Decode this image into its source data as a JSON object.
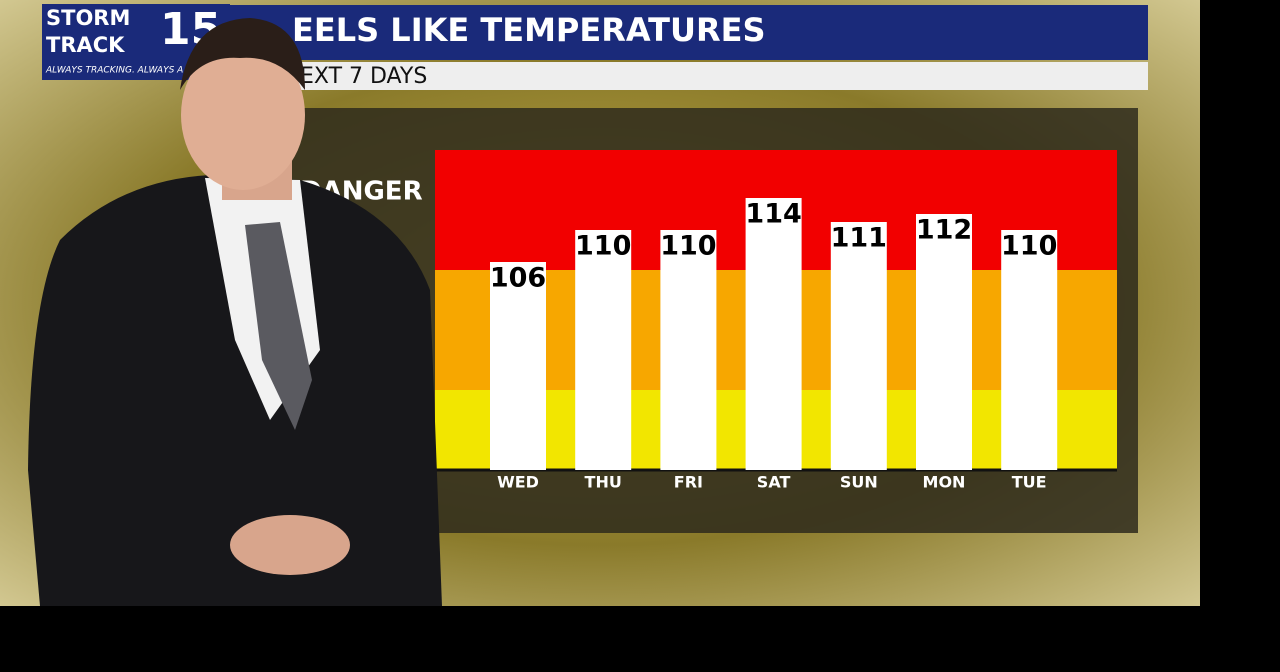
{
  "logo": {
    "line1": "STORM",
    "line2": "TRACK",
    "number": "15",
    "tagline": "ALWAYS TRACKING. ALWAYS A"
  },
  "chart_data": {
    "type": "bar",
    "title": "EELS LIKE TEMPERATURES",
    "subtitle": "EXT 7 DAYS",
    "band_label": "DANGER",
    "categories": [
      "WED",
      "THU",
      "FRI",
      "SAT",
      "SUN",
      "MON",
      "TUE"
    ],
    "values": [
      106,
      110,
      110,
      114,
      111,
      112,
      110
    ],
    "color": "#ffffff",
    "ylim": [
      80,
      120
    ],
    "bands": [
      {
        "from": 80,
        "to": 90,
        "color": "#f2e600"
      },
      {
        "from": 90,
        "to": 105,
        "color": "#f7a700"
      },
      {
        "from": 105,
        "to": 120,
        "color": "#f20000"
      }
    ]
  }
}
